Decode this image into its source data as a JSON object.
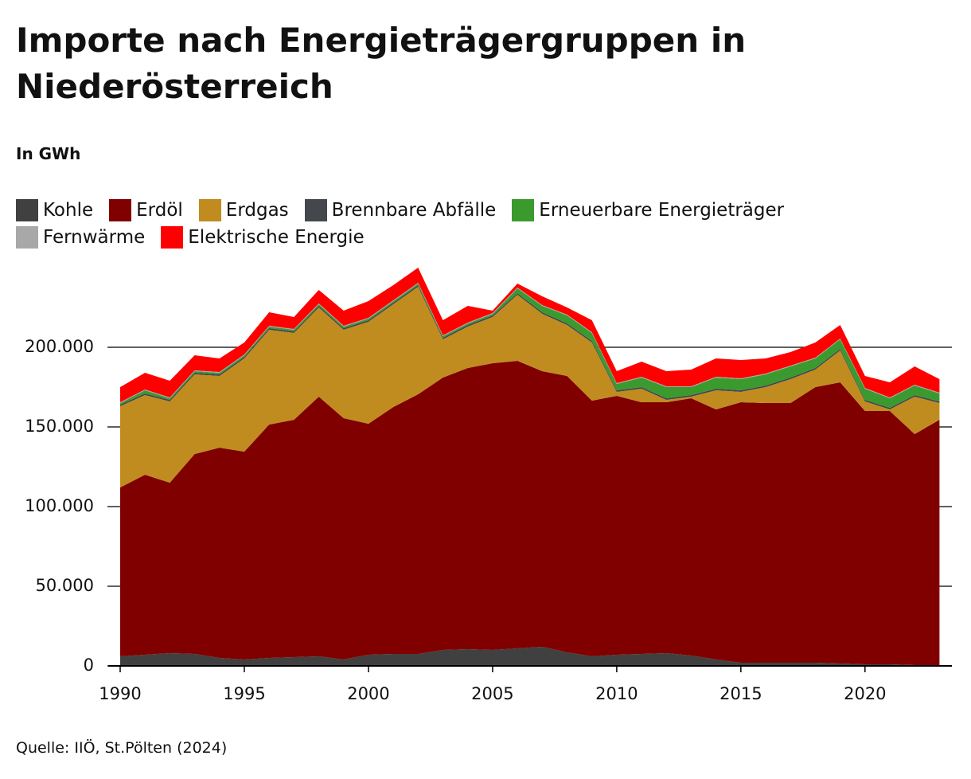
{
  "chart_data": {
    "type": "stacked_area",
    "title": "Importe nach Energieträgergruppen in Niederösterreich",
    "subtitle": "In GWh",
    "source": "Quelle: IIÖ, St.Pölten (2024)",
    "x": [
      1990,
      1991,
      1992,
      1993,
      1994,
      1995,
      1996,
      1997,
      1998,
      1999,
      2000,
      2001,
      2002,
      2003,
      2004,
      2005,
      2006,
      2007,
      2008,
      2009,
      2010,
      2011,
      2012,
      2013,
      2014,
      2015,
      2016,
      2017,
      2018,
      2019,
      2020,
      2021,
      2022,
      2023
    ],
    "xlim": [
      1990,
      2023.5
    ],
    "xticks": [
      1990,
      1995,
      2000,
      2005,
      2010,
      2015,
      2020
    ],
    "ylim": [
      0,
      250000
    ],
    "yticks": [
      0,
      {
        "value": 50000,
        "label": "50.000"
      },
      {
        "value": 100000,
        "label": "100.000"
      },
      {
        "value": 150000,
        "label": "150.000"
      },
      {
        "value": 200000,
        "label": "200.000"
      }
    ],
    "grid": true,
    "series": [
      {
        "name": "Kohle",
        "color": "#404040",
        "values": [
          6000,
          7000,
          8000,
          7500,
          5000,
          4000,
          5000,
          5500,
          6000,
          4000,
          7000,
          7500,
          7500,
          10000,
          10500,
          10000,
          11000,
          12000,
          8500,
          6000,
          7000,
          7500,
          8000,
          6500,
          4000,
          2000,
          2000,
          2000,
          2000,
          1500,
          1000,
          1000,
          500,
          500
        ]
      },
      {
        "name": "Erdöl",
        "color": "#800000",
        "values": [
          106000,
          113000,
          107000,
          125500,
          132000,
          130500,
          146500,
          149000,
          163000,
          151500,
          145000,
          155000,
          163000,
          171000,
          176500,
          180000,
          180500,
          173000,
          173500,
          160500,
          162500,
          158000,
          157500,
          161500,
          157000,
          163500,
          163000,
          163000,
          173000,
          176500,
          159000,
          159000,
          145000,
          154000
        ]
      },
      {
        "name": "Erdgas",
        "color": "#c08c20",
        "values": [
          51000,
          50000,
          51000,
          50000,
          45000,
          58500,
          59500,
          54500,
          56000,
          55500,
          64000,
          64500,
          67500,
          24000,
          26000,
          29000,
          41500,
          36000,
          32000,
          36500,
          2500,
          8500,
          1500,
          1000,
          12000,
          6500,
          10000,
          15000,
          11000,
          20000,
          6000,
          1000,
          23500,
          10500
        ]
      },
      {
        "name": "Brennbare Abfälle",
        "color": "#44474b",
        "values": [
          1000,
          1000,
          1000,
          1000,
          1000,
          1000,
          1000,
          1000,
          1000,
          1000,
          1000,
          1000,
          1000,
          1000,
          1000,
          1000,
          1000,
          1000,
          1000,
          1000,
          1000,
          1000,
          1000,
          1000,
          1000,
          1000,
          1000,
          1000,
          1000,
          1000,
          1000,
          1000,
          1000,
          1000
        ]
      },
      {
        "name": "Erneuerbare Energieträger",
        "color": "#3a9a2e",
        "values": [
          1000,
          2000,
          1000,
          1000,
          1000,
          1000,
          1000,
          1000,
          1000,
          1000,
          1000,
          1000,
          1000,
          1000,
          1000,
          1000,
          3000,
          4000,
          5000,
          5000,
          4000,
          6000,
          7000,
          5000,
          7000,
          7000,
          7000,
          7000,
          6000,
          6000,
          7000,
          6000,
          6000,
          5000
        ]
      },
      {
        "name": "Fernwärme",
        "color": "#a8a8a8",
        "values": [
          500,
          500,
          500,
          500,
          500,
          500,
          500,
          500,
          500,
          500,
          500,
          500,
          500,
          500,
          500,
          500,
          500,
          500,
          500,
          500,
          500,
          500,
          500,
          500,
          500,
          500,
          500,
          500,
          500,
          500,
          500,
          500,
          500,
          500
        ]
      },
      {
        "name": "Elektrische Energie",
        "color": "#ff0000",
        "values": [
          9500,
          10500,
          10500,
          9500,
          8500,
          7500,
          8500,
          7500,
          8500,
          9500,
          10500,
          9500,
          9500,
          9500,
          10500,
          1500,
          2500,
          5500,
          4500,
          7500,
          7500,
          9500,
          9500,
          10500,
          11500,
          11500,
          9500,
          8500,
          9500,
          8500,
          7500,
          9500,
          11500,
          8500
        ]
      }
    ]
  }
}
